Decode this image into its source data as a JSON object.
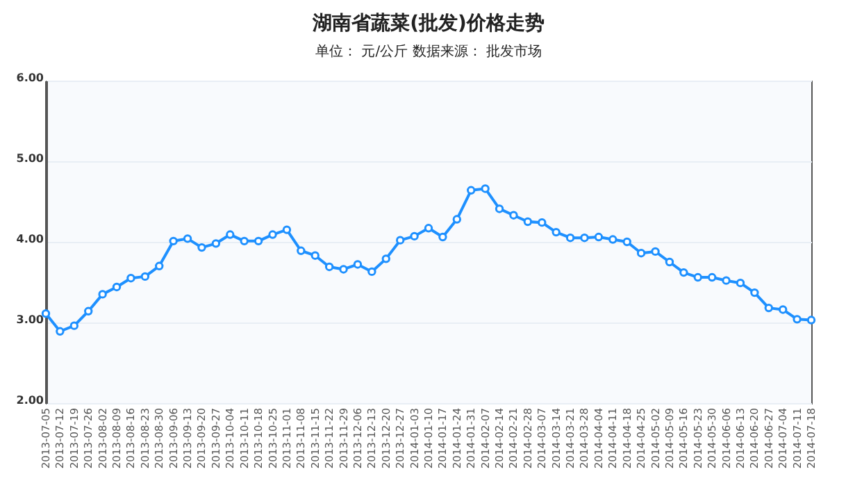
{
  "chart_data": {
    "type": "line",
    "title": "湖南省蔬菜(批发)价格走势",
    "subtitle": "单位： 元/公斤      数据来源： 批发市场",
    "categories": [
      "2013-07-05",
      "2013-07-12",
      "2013-07-19",
      "2013-07-26",
      "2013-08-02",
      "2013-08-09",
      "2013-08-16",
      "2013-08-23",
      "2013-08-30",
      "2013-09-06",
      "2013-09-13",
      "2013-09-20",
      "2013-09-27",
      "2013-10-04",
      "2013-10-11",
      "2013-10-18",
      "2013-10-25",
      "2013-11-01",
      "2013-11-08",
      "2013-11-15",
      "2013-11-22",
      "2013-11-29",
      "2013-12-06",
      "2013-12-13",
      "2013-12-20",
      "2013-12-27",
      "2014-01-03",
      "2014-01-10",
      "2014-01-17",
      "2014-01-24",
      "2014-01-31",
      "2014-02-07",
      "2014-02-14",
      "2014-02-21",
      "2014-02-28",
      "2014-03-07",
      "2014-03-14",
      "2014-03-21",
      "2014-03-28",
      "2014-04-04",
      "2014-04-11",
      "2014-04-18",
      "2014-04-25",
      "2014-05-02",
      "2014-05-09",
      "2014-05-16",
      "2014-05-23",
      "2014-05-30",
      "2014-06-06",
      "2014-06-13",
      "2014-06-20",
      "2014-06-27",
      "2014-07-04",
      "2014-07-11",
      "2014-07-18"
    ],
    "series": [
      {
        "color": "#1e90ff",
        "values": [
          3.11,
          2.89,
          2.96,
          3.14,
          3.35,
          3.44,
          3.55,
          3.57,
          3.7,
          4.01,
          4.04,
          3.93,
          3.98,
          4.09,
          4.01,
          4.01,
          4.09,
          4.15,
          3.89,
          3.83,
          3.69,
          3.66,
          3.72,
          3.63,
          3.79,
          4.02,
          4.07,
          4.17,
          4.06,
          4.28,
          4.64,
          4.66,
          4.41,
          4.33,
          4.25,
          4.24,
          4.12,
          4.05,
          4.05,
          4.06,
          4.03,
          4.0,
          3.86,
          3.88,
          3.75,
          3.62,
          3.56,
          3.56,
          3.52,
          3.49,
          3.37,
          3.18,
          3.16,
          3.04,
          3.03
        ]
      }
    ],
    "ylim": [
      2,
      6
    ],
    "yticks": [
      {
        "value": 2,
        "label": "2.00"
      },
      {
        "value": 3,
        "label": "3.00"
      },
      {
        "value": 4,
        "label": "4.00"
      },
      {
        "value": 5,
        "label": "5.00"
      },
      {
        "value": 6,
        "label": "6.00"
      }
    ],
    "grid": "y",
    "marker": "circle",
    "line_style": "solid"
  }
}
